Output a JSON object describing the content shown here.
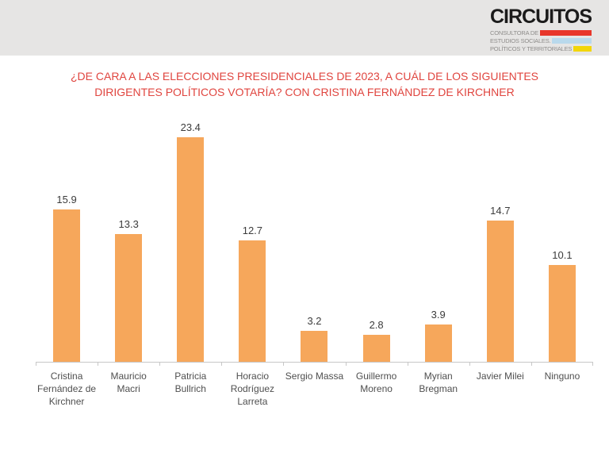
{
  "header": {
    "logo": {
      "brand": "CIRCUITOS",
      "tagline_lines": [
        {
          "text": "CONSULTORA DE",
          "bar_color": "#e8362a"
        },
        {
          "text": "ESTUDIOS SOCIALES.",
          "bar_color": "#b9d9ec"
        },
        {
          "text": "POLÍTICOS Y TERRITORIALES",
          "bar_color": "#f2d60b"
        }
      ]
    }
  },
  "title": {
    "text": "¿DE CARA A LAS ELECCIONES PRESIDENCIALES DE 2023, A CUÁL DE LOS SIGUIENTES DIRIGENTES POLÍTICOS VOTARÍA? CON CRISTINA FERNÁNDEZ DE KIRCHNER",
    "color": "#e0453f"
  },
  "chart_data": {
    "type": "bar",
    "title": "¿DE CARA A LAS ELECCIONES PRESIDENCIALES DE 2023, A CUÁL DE LOS SIGUIENTES DIRIGENTES POLÍTICOS VOTARÍA? CON CRISTINA FERNÁNDEZ DE KIRCHNER",
    "categories": [
      "Cristina Fernández de Kirchner",
      "Mauricio Macri",
      "Patricia Bullrich",
      "Horacio Rodríguez Larreta",
      "Sergio Massa",
      "Guillermo Moreno",
      "Myrian Bregman",
      "Javier Milei",
      "Ninguno"
    ],
    "values": [
      15.9,
      13.3,
      23.4,
      12.7,
      3.2,
      2.8,
      3.9,
      14.7,
      10.1
    ],
    "value_labels_shown": true,
    "bar_color": "#f6a75b",
    "ylim": [
      0,
      25
    ],
    "grid": false,
    "legend": null,
    "xlabel": "",
    "ylabel": ""
  }
}
